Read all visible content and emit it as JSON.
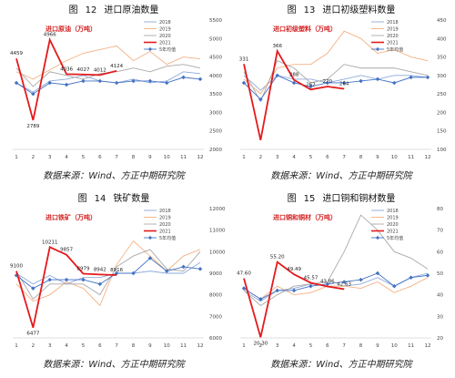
{
  "source_text": "数据来源：Wind、方正中期研究院",
  "figures": [
    {
      "fig_label": "图",
      "fig_no": "12",
      "fig_name": "进口原油数量",
      "chart_data": {
        "type": "line",
        "title": "进口原油（万吨）",
        "x": [
          1,
          2,
          3,
          4,
          5,
          6,
          7,
          8,
          9,
          10,
          11,
          12
        ],
        "ylim": [
          2000,
          5500
        ],
        "yticks": [
          2000,
          2500,
          3000,
          3500,
          4000,
          4500,
          5000,
          5500
        ],
        "legend_position": "top-right",
        "series": [
          {
            "name": "2018",
            "color": "#8eaadb",
            "values": [
              3800,
              3550,
              3850,
              3900,
              4000,
              3850,
              3800,
              3900,
              3800,
              3850,
              4100,
              4050
            ]
          },
          {
            "name": "2019",
            "color": "#f4b183",
            "values": [
              4100,
              3900,
              4150,
              4400,
              4600,
              4700,
              4800,
              4400,
              4650,
              4300,
              4500,
              4450
            ]
          },
          {
            "name": "2020",
            "color": "#a9a9a9",
            "values": [
              4200,
              3700,
              4100,
              4000,
              3900,
              4050,
              4100,
              4200,
              4100,
              4250,
              4300,
              4200
            ]
          },
          {
            "name": "2021",
            "color": "#e41a1c",
            "values": [
              4459,
              2789,
              4966,
              4036,
              4027,
              4012,
              4124,
              null,
              null,
              null,
              null,
              null
            ]
          },
          {
            "name": "5年均值",
            "color": "#4472c4",
            "marker": true,
            "values": [
              3800,
              3500,
              3800,
              3750,
              3850,
              3850,
              3800,
              3850,
              3850,
              3800,
              3950,
              3900
            ]
          }
        ],
        "labels": [
          {
            "i": 0,
            "text": "4459"
          },
          {
            "i": 1,
            "text": "2789"
          },
          {
            "i": 2,
            "text": "4966"
          },
          {
            "i": 3,
            "text": "4036"
          },
          {
            "i": 4,
            "text": "4027"
          },
          {
            "i": 5,
            "text": "4012"
          },
          {
            "i": 6,
            "text": "4124"
          }
        ]
      }
    },
    {
      "fig_label": "图",
      "fig_no": "13",
      "fig_name": "进口初级塑料数量",
      "chart_data": {
        "type": "line",
        "title": "进口初级塑料（万吨）",
        "x": [
          1,
          2,
          3,
          4,
          5,
          6,
          7,
          8,
          9,
          10,
          11,
          12
        ],
        "ylim": [
          100,
          450
        ],
        "yticks": [
          100,
          150,
          200,
          250,
          300,
          350,
          400,
          450
        ],
        "legend_position": "top-right",
        "series": [
          {
            "name": "2018",
            "color": "#8eaadb",
            "values": [
              300,
              260,
              300,
              290,
              290,
              280,
              290,
              300,
              290,
              300,
              300,
              295
            ]
          },
          {
            "name": "2019",
            "color": "#f4b183",
            "values": [
              290,
              250,
              320,
              330,
              330,
              360,
              420,
              400,
              360,
              370,
              350,
              340
            ]
          },
          {
            "name": "2020",
            "color": "#a9a9a9",
            "values": [
              310,
              230,
              340,
              320,
              280,
              290,
              330,
              320,
              320,
              320,
              310,
              300
            ]
          },
          {
            "name": "2021",
            "color": "#e41a1c",
            "values": [
              331,
              125,
              366,
              288,
              262,
              270,
              264,
              null,
              null,
              null,
              null,
              null
            ]
          },
          {
            "name": "5年均值",
            "color": "#4472c4",
            "marker": true,
            "values": [
              280,
              235,
              300,
              280,
              270,
              280,
              280,
              285,
              290,
              280,
              295,
              295
            ]
          }
        ],
        "labels": [
          {
            "i": 0,
            "text": "331"
          },
          {
            "i": 2,
            "text": "366"
          },
          {
            "i": 3,
            "text": "288"
          },
          {
            "i": 4,
            "text": "262"
          },
          {
            "i": 5,
            "text": "270"
          },
          {
            "i": 6,
            "text": "264"
          }
        ]
      }
    },
    {
      "fig_label": "图",
      "fig_no": "14",
      "fig_name": "铁矿数量",
      "chart_data": {
        "type": "line",
        "title": "进口铁矿（万吨）",
        "x": [
          1,
          2,
          3,
          4,
          5,
          6,
          7,
          8,
          9,
          10,
          11,
          12
        ],
        "ylim": [
          6000,
          12000
        ],
        "yticks": [
          6000,
          7000,
          8000,
          9000,
          10000,
          11000,
          12000
        ],
        "legend_position": "top-right",
        "series": [
          {
            "name": "2018",
            "color": "#8eaadb",
            "values": [
              9000,
              8500,
              8900,
              8500,
              8800,
              8800,
              9000,
              9000,
              9100,
              9000,
              9000,
              9500
            ]
          },
          {
            "name": "2019",
            "color": "#f4b183",
            "values": [
              8500,
              7700,
              8000,
              8600,
              8300,
              7500,
              9400,
              10500,
              9800,
              9100,
              9800,
              10100
            ]
          },
          {
            "name": "2020",
            "color": "#a9a9a9",
            "values": [
              9100,
              7800,
              8500,
              8500,
              8500,
              8000,
              9300,
              9800,
              10100,
              9200,
              9100,
              10000
            ]
          },
          {
            "name": "2021",
            "color": "#e41a1c",
            "values": [
              9100,
              6477,
              10211,
              9857,
              8979,
              8942,
              8916,
              null,
              null,
              null,
              null,
              null
            ]
          },
          {
            "name": "5年均值",
            "color": "#4472c4",
            "marker": true,
            "values": [
              8900,
              8300,
              8700,
              8700,
              8700,
              8500,
              9000,
              9000,
              9700,
              9100,
              9300,
              9200
            ]
          }
        ],
        "labels": [
          {
            "i": 0,
            "text": "9100"
          },
          {
            "i": 1,
            "text": "6477"
          },
          {
            "i": 2,
            "text": "10211"
          },
          {
            "i": 3,
            "text": "9857"
          },
          {
            "i": 4,
            "text": "8979"
          },
          {
            "i": 5,
            "text": "8942"
          },
          {
            "i": 6,
            "text": "8916"
          }
        ]
      }
    },
    {
      "fig_label": "图",
      "fig_no": "15",
      "fig_name": "进口铜和铜材数量",
      "chart_data": {
        "type": "line",
        "title": "进口铜和铜材（万吨）",
        "x": [
          1,
          2,
          3,
          4,
          5,
          6,
          7,
          8,
          9,
          10,
          11,
          12
        ],
        "ylim": [
          20,
          80
        ],
        "yticks": [
          20,
          30,
          40,
          50,
          60,
          70,
          80
        ],
        "legend_position": "top-right",
        "series": [
          {
            "name": "2018",
            "color": "#8eaadb",
            "values": [
              42,
              37,
              42,
              43,
              45,
              44,
              44,
              45,
              48,
              44,
              48,
              50
            ]
          },
          {
            "name": "2019",
            "color": "#f4b183",
            "values": [
              43,
              38,
              44,
              40,
              41,
              44,
              44,
              43,
              46,
              41,
              44,
              48
            ]
          },
          {
            "name": "2020",
            "color": "#a9a9a9",
            "values": [
              42,
              35,
              40,
              44,
              45,
              46,
              60,
              77,
              70,
              60,
              57,
              52
            ]
          },
          {
            "name": "2021",
            "color": "#e41a1c",
            "values": [
              47.6,
              20.3,
              55.2,
              49.49,
              45.57,
              43.86,
              42.63,
              null,
              null,
              null,
              null,
              null
            ]
          },
          {
            "name": "5年均值",
            "color": "#4472c4",
            "marker": true,
            "values": [
              43,
              38,
              42,
              42,
              44,
              45,
              46,
              47,
              50,
              44,
              48,
              49
            ]
          }
        ],
        "labels": [
          {
            "i": 0,
            "text": "47.60"
          },
          {
            "i": 1,
            "text": "20.30"
          },
          {
            "i": 2,
            "text": "55.20"
          },
          {
            "i": 3,
            "text": "49.49"
          },
          {
            "i": 4,
            "text": "45.57"
          },
          {
            "i": 5,
            "text": "43.86"
          },
          {
            "i": 6,
            "text": "42.63"
          }
        ]
      }
    }
  ]
}
